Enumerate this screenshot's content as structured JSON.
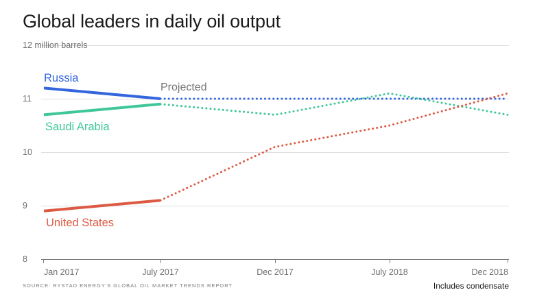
{
  "title": "Global leaders in daily oil output",
  "source": "SOURCE: RYSTAD ENERGY'S GLOBAL OIL MARKET TRENDS REPORT",
  "note": "Includes condensate",
  "colors": {
    "russia": "#3366dd",
    "saudi_arabia": "#3fc69a",
    "united_states": "#dc5a44",
    "grid": "#dddddd",
    "axis": "#777777",
    "annotation": "#777777"
  },
  "chart_data": {
    "type": "line",
    "title": "Global leaders in daily oil output",
    "y_unit_label": "12 million barrels",
    "ylim": [
      8,
      12
    ],
    "yticks": [
      8,
      9,
      10,
      11
    ],
    "x": [
      "Jan 2017",
      "July 2017",
      "Dec 2017",
      "July 2018",
      "Dec 2018"
    ],
    "x_tick_labels": [
      "Jan 2017",
      "July 2017",
      "Dec 2017",
      "July 2018",
      "Dec 2018"
    ],
    "projection_start": "July 2017",
    "projection_label": "Projected",
    "grid": true,
    "legend": "inline labels",
    "series": [
      {
        "name": "Russia",
        "key": "russia",
        "values": [
          11.2,
          11.0,
          11.0,
          11.0,
          11.0
        ]
      },
      {
        "name": "Saudi Arabia",
        "key": "saudi_arabia",
        "values": [
          10.7,
          10.9,
          10.7,
          11.1,
          10.7
        ]
      },
      {
        "name": "United States",
        "key": "united_states",
        "values": [
          8.9,
          9.1,
          10.1,
          10.5,
          11.1
        ]
      }
    ]
  }
}
